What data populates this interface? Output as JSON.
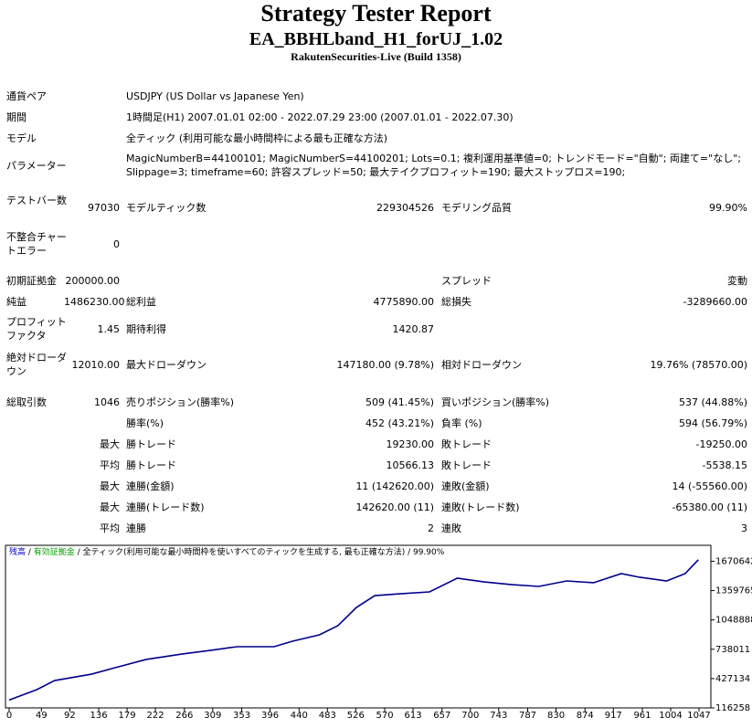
{
  "header": {
    "title": "Strategy Tester Report",
    "subtitle": "EA_BBHLband_H1_forUJ_1.02",
    "build": "RakutenSecurities-Live (Build 1358)"
  },
  "settings": [
    [
      "通貨ペア",
      "USDJPY (US Dollar vs Japanese Yen)"
    ],
    [
      "期間",
      "1時間足(H1) 2007.01.01 02:00 - 2022.07.29 23:00 (2007.01.01 - 2022.07.30)"
    ],
    [
      "モデル",
      "全ティック (利用可能な最小時間枠による最も正確な方法)"
    ],
    [
      "パラメーター",
      "MagicNumberB=44100101; MagicNumberS=44100201; Lots=0.1; 複利運用基準値=0; トレンドモード=\"自動\"; 両建て=\"なし\"; Slippage=3; timeframe=60; 許容スプレッド=50; 最大テイクプロフィット=190; 最大ストップロス=190;"
    ]
  ],
  "stats": [
    [
      "テストバー数",
      "97030",
      "モデルティック数",
      "229304526",
      "モデリング品質",
      "99.90%"
    ],
    [
      "不整合チャートエラー",
      "0",
      null,
      null,
      null,
      null
    ],
    [
      "初期証拠金",
      "200000.00",
      null,
      null,
      "スプレッド",
      "変動"
    ],
    [
      "純益",
      "1486230.00",
      "総利益",
      "4775890.00",
      "総損失",
      "-3289660.00"
    ],
    [
      "プロフィットファクタ",
      "1.45",
      "期待利得",
      "1420.87",
      null,
      null
    ],
    [
      "絶対ドローダウン",
      "12010.00",
      "最大ドローダウン",
      "147180.00 (9.78%)",
      "相対ドローダウン",
      "19.76% (78570.00)"
    ],
    [
      "総取引数",
      "1046",
      "売りポジション(勝率%)",
      "509 (41.45%)",
      "買いポジション(勝率%)",
      "537 (44.88%)"
    ],
    [
      null,
      null,
      "勝率(%)",
      "452 (43.21%)",
      "負率 (%)",
      "594 (56.79%)"
    ],
    [
      null,
      "最大",
      "勝トレード",
      "19230.00",
      "敗トレード",
      "-19250.00"
    ],
    [
      null,
      "平均",
      "勝トレード",
      "10566.13",
      "敗トレード",
      "-5538.15"
    ],
    [
      null,
      "最大",
      "連勝(金額)",
      "11 (142620.00)",
      "連敗(金額)",
      "14 (-55560.00)"
    ],
    [
      null,
      "最大",
      "連勝(トレード数)",
      "142620.00 (11)",
      "連敗(トレード数)",
      "-65380.00 (11)"
    ],
    [
      null,
      "平均",
      "連勝",
      "2",
      "連敗",
      "3"
    ]
  ],
  "chart_data": {
    "type": "line",
    "legend": [
      {
        "text": "残高",
        "color": "#0000cc"
      },
      {
        "text": " / ",
        "color": "#000000"
      },
      {
        "text": "有効証拠金",
        "color": "#00a000"
      },
      {
        "text": " / 全ティック(利用可能な最小時間枠を使いすべてのティックを生成する, 最も正確な方法) / 99.90%",
        "color": "#000000"
      }
    ],
    "x": [
      0,
      42,
      69,
      125,
      166,
      208,
      263,
      305,
      346,
      402,
      430,
      471,
      499,
      527,
      555,
      596,
      638,
      680,
      721,
      763,
      804,
      846,
      887,
      929,
      957,
      998,
      1026,
      1046
    ],
    "series": [
      {
        "name": "残高",
        "color": "#00008b",
        "values": [
          200000,
          310000,
          406000,
          474000,
          552000,
          630000,
          688000,
          726000,
          765000,
          765000,
          823000,
          891000,
          988000,
          1181000,
          1307000,
          1327000,
          1346000,
          1491000,
          1452000,
          1423000,
          1404000,
          1462000,
          1443000,
          1540000,
          1501000,
          1462000,
          1540000,
          1686230
        ]
      }
    ],
    "xlim": [
      0,
      1047
    ],
    "ylim": [
      116258,
      1830000
    ],
    "xticks": [
      0,
      49,
      92,
      136,
      179,
      222,
      266,
      309,
      353,
      396,
      440,
      483,
      526,
      570,
      613,
      657,
      700,
      743,
      787,
      830,
      874,
      917,
      961,
      1004,
      1047
    ],
    "yticks": [
      116258,
      427134,
      738011,
      1048888,
      1359765,
      1670642
    ]
  }
}
